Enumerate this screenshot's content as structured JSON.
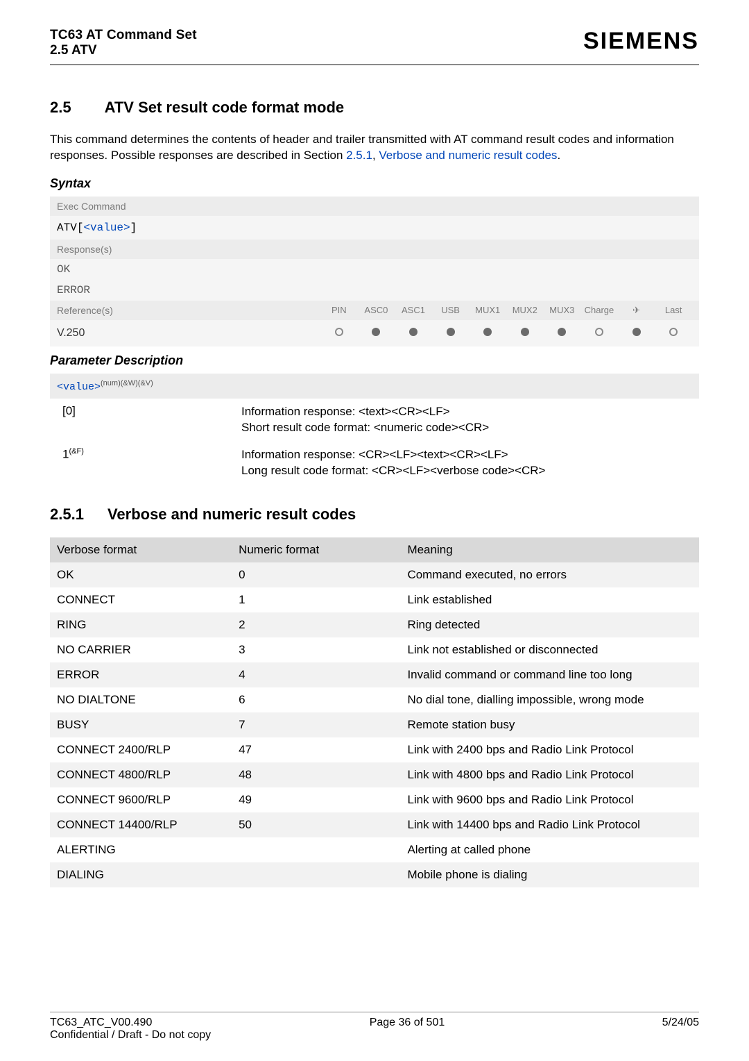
{
  "header": {
    "title": "TC63 AT Command Set",
    "subtitle": "2.5 ATV",
    "brand": "SIEMENS"
  },
  "section": {
    "number": "2.5",
    "title": "ATV   Set result code format mode",
    "intro_a": "This command determines the contents of header and trailer transmitted with AT command result codes and information responses. Possible responses are described in Section ",
    "intro_link1": "2.5.1",
    "intro_sep": ", ",
    "intro_link2": "Verbose and numeric result codes",
    "intro_end": "."
  },
  "syntax": {
    "label": "Syntax",
    "exec_label": "Exec Command",
    "cmd_keyword": "ATV",
    "cmd_open": "[",
    "cmd_param": "<value>",
    "cmd_close": "]",
    "resp_label": "Response(s)",
    "resp1": "OK",
    "resp2": "ERROR",
    "ref_label": "Reference(s)",
    "columns": [
      "PIN",
      "ASC0",
      "ASC1",
      "USB",
      "MUX1",
      "MUX2",
      "MUX3",
      "Charge",
      "✈",
      "Last"
    ],
    "ref_val_label": "V.250",
    "dots": [
      "open",
      "filled",
      "filled",
      "filled",
      "filled",
      "filled",
      "filled",
      "open",
      "filled",
      "open"
    ]
  },
  "params": {
    "label": "Parameter Description",
    "head_code": "<value>",
    "head_sup": "(num)(&W)(&V)",
    "rows": [
      {
        "val": "[0]",
        "desc": "Information response: <text><CR><LF>\nShort result code format: <numeric code><CR>"
      },
      {
        "val": "1",
        "val_sup": "(&F)",
        "desc": "Information response: <CR><LF><text><CR><LF>\nLong result code format: <CR><LF><verbose code><CR>"
      }
    ]
  },
  "subsection": {
    "number": "2.5.1",
    "title": "Verbose and numeric result codes"
  },
  "result_table": {
    "headers": [
      "Verbose format",
      "Numeric format",
      "Meaning"
    ],
    "rows": [
      [
        "OK",
        "0",
        "Command executed, no errors"
      ],
      [
        "CONNECT",
        "1",
        "Link established"
      ],
      [
        "RING",
        "2",
        "Ring detected"
      ],
      [
        "NO CARRIER",
        "3",
        "Link not established or disconnected"
      ],
      [
        "ERROR",
        "4",
        "Invalid command or command line too long"
      ],
      [
        "NO DIALTONE",
        "6",
        "No dial tone, dialling impossible, wrong mode"
      ],
      [
        "BUSY",
        "7",
        "Remote station busy"
      ],
      [
        "CONNECT 2400/RLP",
        "47",
        "Link with 2400 bps and Radio Link Protocol"
      ],
      [
        "CONNECT 4800/RLP",
        "48",
        "Link with 4800 bps and Radio Link Protocol"
      ],
      [
        "CONNECT 9600/RLP",
        "49",
        "Link with 9600 bps and Radio Link Protocol"
      ],
      [
        "CONNECT 14400/RLP",
        "50",
        "Link with 14400 bps and Radio Link Protocol"
      ],
      [
        "ALERTING",
        "",
        "Alerting at called phone"
      ],
      [
        "DIALING",
        "",
        "Mobile phone is dialing"
      ]
    ]
  },
  "footer": {
    "left": "TC63_ATC_V00.490",
    "center": "Page 36 of 501",
    "right": "5/24/05",
    "left2": "Confidential / Draft - Do not copy"
  }
}
